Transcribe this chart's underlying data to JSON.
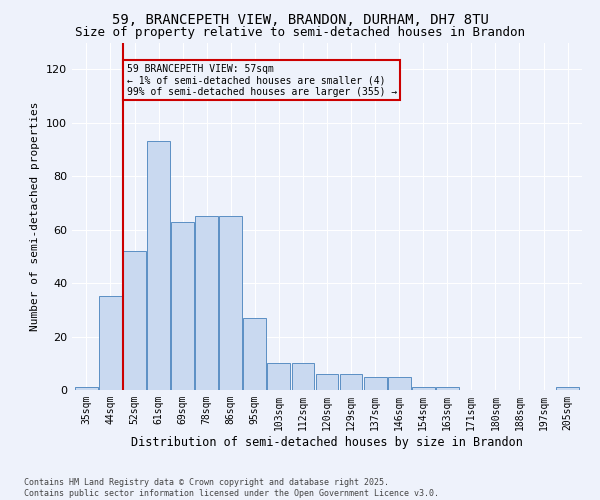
{
  "title_line1": "59, BRANCEPETH VIEW, BRANDON, DURHAM, DH7 8TU",
  "title_line2": "Size of property relative to semi-detached houses in Brandon",
  "xlabel": "Distribution of semi-detached houses by size in Brandon",
  "ylabel": "Number of semi-detached properties",
  "bins": [
    "35sqm",
    "44sqm",
    "52sqm",
    "61sqm",
    "69sqm",
    "78sqm",
    "86sqm",
    "95sqm",
    "103sqm",
    "112sqm",
    "120sqm",
    "129sqm",
    "137sqm",
    "146sqm",
    "154sqm",
    "163sqm",
    "171sqm",
    "180sqm",
    "188sqm",
    "197sqm",
    "205sqm"
  ],
  "values": [
    1,
    35,
    52,
    93,
    63,
    65,
    65,
    27,
    10,
    10,
    6,
    6,
    5,
    5,
    1,
    1,
    0,
    0,
    0,
    0,
    1
  ],
  "bar_color": "#c9d9f0",
  "bar_edge_color": "#5a8fc4",
  "vline_color": "#cc0000",
  "annotation_text": "59 BRANCEPETH VIEW: 57sqm\n← 1% of semi-detached houses are smaller (4)\n99% of semi-detached houses are larger (355) →",
  "annotation_box_color": "#cc0000",
  "ylim": [
    0,
    130
  ],
  "yticks": [
    0,
    20,
    40,
    60,
    80,
    100,
    120
  ],
  "background_color": "#eef2fb",
  "footer_text": "Contains HM Land Registry data © Crown copyright and database right 2025.\nContains public sector information licensed under the Open Government Licence v3.0.",
  "title_fontsize": 10,
  "subtitle_fontsize": 9,
  "tick_fontsize": 7,
  "ylabel_fontsize": 8,
  "xlabel_fontsize": 8.5,
  "annotation_fontsize": 7,
  "footer_fontsize": 6
}
